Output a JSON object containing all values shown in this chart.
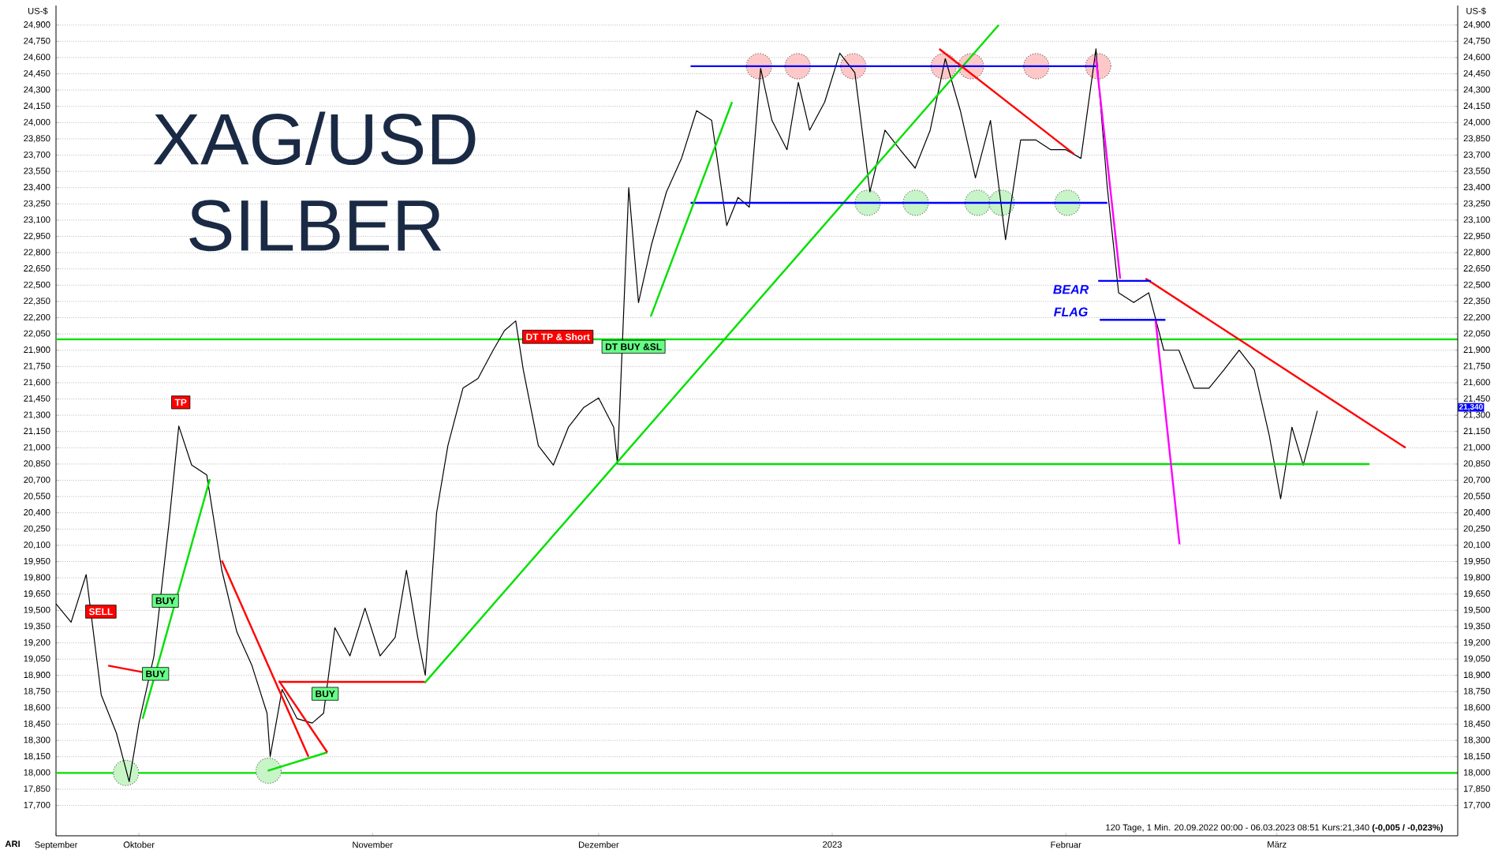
{
  "chart_data": {
    "type": "line",
    "title": "XAG/USD",
    "subtitle": "SILBER",
    "ylabel": "US-$",
    "y2label": "US-$",
    "xlim": [
      "2022-09-20",
      "2023-03-25"
    ],
    "ylim": [
      17420,
      25080
    ],
    "y2lim": [
      17420,
      25080
    ],
    "grid": "y",
    "xticks": [
      {
        "value": "2022-09-20",
        "label": "September"
      },
      {
        "value": "2022-10-01",
        "label": "Oktober"
      },
      {
        "value": "2022-11-01",
        "label": "November"
      },
      {
        "value": "2022-12-01",
        "label": "Dezember"
      },
      {
        "value": "2023-01-01",
        "label": "2023"
      },
      {
        "value": "2023-02-01",
        "label": "Februar"
      },
      {
        "value": "2023-03-01",
        "label": "März"
      }
    ],
    "yticks": [
      {
        "value": 17700,
        "label": "17,700"
      },
      {
        "value": 17850,
        "label": "17,850"
      },
      {
        "value": 18000,
        "label": "18,000"
      },
      {
        "value": 18150,
        "label": "18,150"
      },
      {
        "value": 18300,
        "label": "18,300"
      },
      {
        "value": 18450,
        "label": "18,450"
      },
      {
        "value": 18600,
        "label": "18,600"
      },
      {
        "value": 18750,
        "label": "18,750"
      },
      {
        "value": 18900,
        "label": "18,900"
      },
      {
        "value": 19050,
        "label": "19,050"
      },
      {
        "value": 19200,
        "label": "19,200"
      },
      {
        "value": 19350,
        "label": "19,350"
      },
      {
        "value": 19500,
        "label": "19,500"
      },
      {
        "value": 19650,
        "label": "19,650"
      },
      {
        "value": 19800,
        "label": "19,800"
      },
      {
        "value": 19950,
        "label": "19,950"
      },
      {
        "value": 20100,
        "label": "20,100"
      },
      {
        "value": 20250,
        "label": "20,250"
      },
      {
        "value": 20400,
        "label": "20,400"
      },
      {
        "value": 20550,
        "label": "20,550"
      },
      {
        "value": 20700,
        "label": "20,700"
      },
      {
        "value": 20850,
        "label": "20,850"
      },
      {
        "value": 21000,
        "label": "21,000"
      },
      {
        "value": 21150,
        "label": "21,150"
      },
      {
        "value": 21300,
        "label": "21,300"
      },
      {
        "value": 21450,
        "label": "21,450"
      },
      {
        "value": 21600,
        "label": "21,600"
      },
      {
        "value": 21750,
        "label": "21,750"
      },
      {
        "value": 21900,
        "label": "21,900"
      },
      {
        "value": 22050,
        "label": "22,050"
      },
      {
        "value": 22200,
        "label": "22,200"
      },
      {
        "value": 22350,
        "label": "22,350"
      },
      {
        "value": 22500,
        "label": "22,500"
      },
      {
        "value": 22650,
        "label": "22,650"
      },
      {
        "value": 22800,
        "label": "22,800"
      },
      {
        "value": 22950,
        "label": "22,950"
      },
      {
        "value": 23100,
        "label": "23,100"
      },
      {
        "value": 23250,
        "label": "23,250"
      },
      {
        "value": 23400,
        "label": "23,400"
      },
      {
        "value": 23550,
        "label": "23,550"
      },
      {
        "value": 23700,
        "label": "23,700"
      },
      {
        "value": 23850,
        "label": "23,850"
      },
      {
        "value": 24000,
        "label": "24,000"
      },
      {
        "value": 24150,
        "label": "24,150"
      },
      {
        "value": 24300,
        "label": "24,300"
      },
      {
        "value": 24450,
        "label": "24,450"
      },
      {
        "value": 24600,
        "label": "24,600"
      },
      {
        "value": 24750,
        "label": "24,750"
      },
      {
        "value": 24900,
        "label": "24,900"
      }
    ],
    "y2ticks": [
      {
        "value": 17700,
        "label": "17,700"
      },
      {
        "value": 17850,
        "label": "17,850"
      },
      {
        "value": 18000,
        "label": "18,000"
      },
      {
        "value": 18150,
        "label": "18,150"
      },
      {
        "value": 18300,
        "label": "18,300"
      },
      {
        "value": 18450,
        "label": "18,450"
      },
      {
        "value": 18600,
        "label": "18,600"
      },
      {
        "value": 18750,
        "label": "18,750"
      },
      {
        "value": 18900,
        "label": "18,900"
      },
      {
        "value": 19050,
        "label": "19,050"
      },
      {
        "value": 19200,
        "label": "19,200"
      },
      {
        "value": 19350,
        "label": "19,350"
      },
      {
        "value": 19500,
        "label": "19,500"
      },
      {
        "value": 19650,
        "label": "19,650"
      },
      {
        "value": 19800,
        "label": "19,800"
      },
      {
        "value": 19950,
        "label": "19,950"
      },
      {
        "value": 20100,
        "label": "20,100"
      },
      {
        "value": 20250,
        "label": "20,250"
      },
      {
        "value": 20400,
        "label": "20,400"
      },
      {
        "value": 20550,
        "label": "20,550"
      },
      {
        "value": 20700,
        "label": "20,700"
      },
      {
        "value": 20850,
        "label": "20,850"
      },
      {
        "value": 21000,
        "label": "21,000"
      },
      {
        "value": 21150,
        "label": "21,150"
      },
      {
        "value": 21300,
        "label": "21,300"
      },
      {
        "value": 21450,
        "label": "21,450"
      },
      {
        "value": 21600,
        "label": "21,600"
      },
      {
        "value": 21750,
        "label": "21,750"
      },
      {
        "value": 21900,
        "label": "21,900"
      },
      {
        "value": 22050,
        "label": "22,050"
      },
      {
        "value": 22200,
        "label": "22,200"
      },
      {
        "value": 22350,
        "label": "22,350"
      },
      {
        "value": 22500,
        "label": "22,500"
      },
      {
        "value": 22650,
        "label": "22,650"
      },
      {
        "value": 22800,
        "label": "22,800"
      },
      {
        "value": 22950,
        "label": "22,950"
      },
      {
        "value": 23100,
        "label": "23,100"
      },
      {
        "value": 23250,
        "label": "23,250"
      },
      {
        "value": 23400,
        "label": "23,400"
      },
      {
        "value": 23550,
        "label": "23,550"
      },
      {
        "value": 23700,
        "label": "23,700"
      },
      {
        "value": 23850,
        "label": "23,850"
      },
      {
        "value": 24000,
        "label": "24,000"
      },
      {
        "value": 24150,
        "label": "24,150"
      },
      {
        "value": 24300,
        "label": "24,300"
      },
      {
        "value": 24450,
        "label": "24,450"
      },
      {
        "value": 24600,
        "label": "24,600"
      },
      {
        "value": 24750,
        "label": "24,750"
      },
      {
        "value": 24900,
        "label": "24,900"
      }
    ],
    "ref_lines": [
      {
        "axis": "y",
        "value": 22000,
        "color": "#00e000"
      },
      {
        "axis": "y",
        "value": 18000,
        "color": "#00e000"
      }
    ],
    "series": [
      {
        "color": "#000000",
        "marker": "none",
        "x": [
          "2022-09-20",
          "2022-09-22",
          "2022-09-24",
          "2022-09-26",
          "2022-09-28",
          "2022-09-29T17:00",
          "2022-10-01",
          "2022-10-03",
          "2022-10-05",
          "2022-10-06T07:00",
          "2022-10-08",
          "2022-10-10",
          "2022-10-12",
          "2022-10-14",
          "2022-10-16",
          "2022-10-18",
          "2022-10-18T10:00",
          "2022-10-20",
          "2022-10-22",
          "2022-10-24",
          "2022-10-25T12:00",
          "2022-10-27",
          "2022-10-29",
          "2022-10-31",
          "2022-11-02",
          "2022-11-04",
          "2022-11-05T12:00",
          "2022-11-07",
          "2022-11-08",
          "2022-11-09T12:00",
          "2022-11-11",
          "2022-11-13",
          "2022-11-15",
          "2022-11-17",
          "2022-11-18T12:00",
          "2022-11-20",
          "2022-11-21",
          "2022-11-23",
          "2022-11-25",
          "2022-11-27",
          "2022-11-29",
          "2022-12-01",
          "2022-12-03",
          "2022-12-03T12:00",
          "2022-12-05",
          "2022-12-06T07:00",
          "2022-12-08",
          "2022-12-10",
          "2022-12-12",
          "2022-12-14",
          "2022-12-16",
          "2022-12-18",
          "2022-12-19T12:00",
          "2022-12-21",
          "2022-12-22T12:00",
          "2022-12-24",
          "2022-12-26",
          "2022-12-27T12:00",
          "2022-12-29",
          "2022-12-31",
          "2023-01-02",
          "2023-01-04",
          "2023-01-06",
          "2023-01-08",
          "2023-01-10",
          "2023-01-12",
          "2023-01-14",
          "2023-01-16",
          "2023-01-18",
          "2023-01-20",
          "2023-01-22",
          "2023-01-24",
          "2023-01-26",
          "2023-01-28",
          "2023-01-30",
          "2023-02-01",
          "2023-02-03",
          "2023-02-05",
          "2023-02-06T12:00",
          "2023-02-08",
          "2023-02-10",
          "2023-02-12",
          "2023-02-14",
          "2023-02-16",
          "2023-02-18",
          "2023-02-20",
          "2023-02-22",
          "2023-02-24",
          "2023-02-26",
          "2023-02-28",
          "2023-03-01T12:00",
          "2023-03-03",
          "2023-03-04T12:00",
          "2023-03-06T08:51"
        ],
        "values": [
          19560,
          19390,
          19830,
          18720,
          18370,
          17920,
          18460,
          19080,
          20310,
          21200,
          20840,
          20750,
          19870,
          19300,
          18990,
          18550,
          18150,
          18770,
          18500,
          18460,
          18550,
          19340,
          19080,
          19520,
          19080,
          19250,
          19870,
          19250,
          18900,
          20400,
          21020,
          21550,
          21640,
          21900,
          22080,
          22170,
          21720,
          21020,
          20840,
          21190,
          21370,
          21460,
          21190,
          20850,
          23400,
          22340,
          22870,
          23360,
          23670,
          24110,
          24020,
          23050,
          23310,
          23220,
          24500,
          24020,
          23750,
          24370,
          23930,
          24190,
          24640,
          24460,
          23360,
          23930,
          23750,
          23580,
          23930,
          24590,
          24110,
          23490,
          24020,
          22920,
          23840,
          23840,
          23750,
          23750,
          23670,
          24680,
          23400,
          22430,
          22340,
          22430,
          21900,
          21900,
          21550,
          21550,
          21720,
          21900,
          21720,
          21110,
          20530,
          21190,
          20840,
          21340
        ]
      },
      {
        "type": "scatter",
        "color": "#ffc8c8",
        "marker": "circle",
        "x": [
          "2022-12-22T07:00",
          "2022-12-27T10:00",
          "2023-01-03T19:00",
          "2023-01-15T19:00",
          "2023-01-19T10:00",
          "2023-01-28T02:00",
          "2023-02-05T07:00"
        ],
        "values": [
          24520,
          24520,
          24520,
          24520,
          24520,
          24520,
          24520
        ]
      },
      {
        "type": "scatter",
        "color": "#c8f5c8",
        "marker": "circle",
        "x": [
          "2022-09-29T07:00",
          "2022-10-18T05:00",
          "2023-01-05T17:00",
          "2023-01-12T02:00",
          "2023-01-20T07:00",
          "2023-01-23T12:00",
          "2023-02-01T05:00"
        ],
        "values": [
          18000,
          18020,
          23260,
          23260,
          23260,
          23260,
          23260
        ]
      },
      {
        "type": "line",
        "color": "#00e000",
        "x": [
          "2022-11-07T22:00",
          "2023-01-23T02:00"
        ],
        "values": [
          18830,
          24900
        ]
      },
      {
        "type": "line",
        "color": "#00e000",
        "x": [
          "2022-12-03T14:00",
          "2023-03-13T07:00"
        ],
        "values": [
          20850,
          20850
        ]
      },
      {
        "type": "line",
        "color": "#0000ff",
        "x": [
          "2022-12-13T05:00",
          "2023-02-05T07:00"
        ],
        "values": [
          24520,
          24520
        ]
      },
      {
        "type": "line",
        "color": "#0000ff",
        "x": [
          "2022-12-13T05:00",
          "2023-02-06T12:00"
        ],
        "values": [
          23260,
          23260
        ]
      },
      {
        "type": "line",
        "color": "#ff0000",
        "x": [
          "2023-02-11T14:00",
          "2023-03-18T02:00"
        ],
        "values": [
          22560,
          21000
        ]
      },
      {
        "type": "line",
        "color": "#ff00ff",
        "x": [
          "2023-02-05",
          "2023-02-08T05:00"
        ],
        "values": [
          24590,
          22560
        ]
      },
      {
        "type": "line",
        "color": "#ff00ff",
        "x": [
          "2023-02-12T22:00",
          "2023-02-16T02:00"
        ],
        "values": [
          22170,
          20110
        ]
      },
      {
        "type": "line",
        "color": "#0000ff",
        "x": [
          "2023-02-05T07:00",
          "2023-02-12T07:00"
        ],
        "values": [
          22540,
          22540
        ]
      },
      {
        "type": "line",
        "color": "#0000ff",
        "x": [
          "2023-02-05T12:00",
          "2023-02-14T05:00"
        ],
        "values": [
          22180,
          22180
        ]
      },
      {
        "type": "line",
        "color": "#ff0000",
        "x": [
          "2023-01-15T05:00",
          "2023-02-02T02:00"
        ],
        "values": [
          24680,
          23710
        ]
      },
      {
        "type": "line",
        "color": "#00e000",
        "x": [
          "2022-12-07T22:00",
          "2022-12-18T17:00"
        ],
        "values": [
          22210,
          24190
        ]
      },
      {
        "type": "line",
        "color": "#ff0000",
        "x": [
          "2022-10-12",
          "2022-10-23T12:00"
        ],
        "values": [
          19960,
          18150
        ]
      },
      {
        "type": "line",
        "color": "#00e000",
        "x": [
          "2022-10-01T12:00",
          "2022-10-10T10:00"
        ],
        "values": [
          18500,
          20710
        ]
      },
      {
        "type": "line",
        "color": "#ff0000",
        "x": [
          "2022-10-19T14:00",
          "2022-11-07T22:00"
        ],
        "values": [
          18840,
          18840
        ]
      },
      {
        "type": "line",
        "color": "#ff0000",
        "x": [
          "2022-09-26T22:00",
          "2022-10-01T12:00"
        ],
        "values": [
          18990,
          18930
        ]
      },
      {
        "type": "line",
        "color": "#00e000",
        "x": [
          "2022-10-18T02:00",
          "2022-10-26"
        ],
        "values": [
          18020,
          18190
        ]
      },
      {
        "type": "line",
        "color": "#ff0000",
        "x": [
          "2022-10-19T14:00",
          "2022-10-26"
        ],
        "values": [
          18850,
          18190
        ]
      }
    ],
    "annotations": [
      "SELL",
      "BUY",
      "BUY",
      "TP",
      "BUY",
      "DT TP & Short",
      "DT BUY &SL",
      "BEAR",
      "FLAG",
      "21,340",
      "120 Tage, 1 Min. 20.09.2022 00:00 - 06.03.2023 08:51 Kurs:21,340 **(-0,005 / -0,023%)**",
      "ARI"
    ]
  }
}
